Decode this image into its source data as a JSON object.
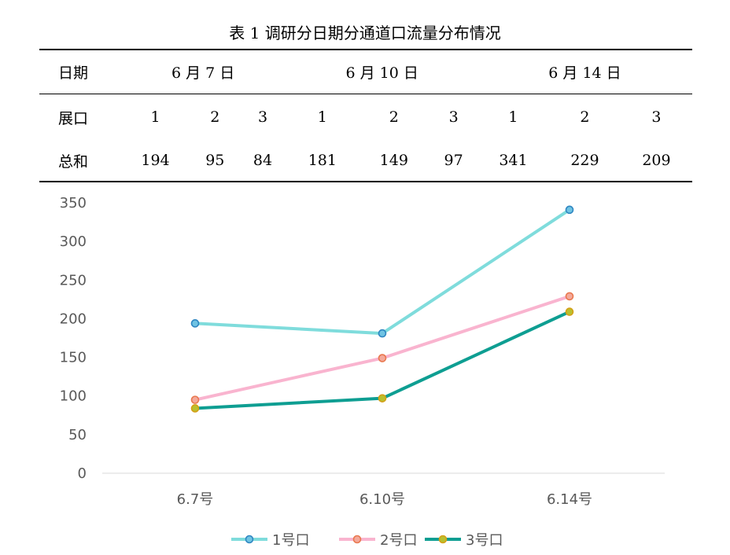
{
  "table": {
    "caption": "表 1 调研分日期分通道口流量分布情况",
    "date_label": "日期",
    "dates": [
      "6 月 7 日",
      "6 月 10 日",
      "6 月 14 日"
    ],
    "port_label": "展口",
    "ports": [
      "1",
      "2",
      "3",
      "1",
      "2",
      "3",
      "1",
      "2",
      "3"
    ],
    "sum_label": "总和",
    "sums": [
      "194",
      "95",
      "84",
      "181",
      "149",
      "97",
      "341",
      "229",
      "209"
    ]
  },
  "chart_data": {
    "type": "line",
    "categories": [
      "6.7号",
      "6.10号",
      "6.14号"
    ],
    "series": [
      {
        "name": "1号口",
        "values": [
          194,
          181,
          341
        ],
        "color": "#7fdcdc",
        "marker_fill": "#6fc3e3",
        "marker_stroke": "#2e86c1"
      },
      {
        "name": "2号口",
        "values": [
          95,
          149,
          229
        ],
        "color": "#f9b4cf",
        "marker_fill": "#f4a99a",
        "marker_stroke": "#e9784f"
      },
      {
        "name": "3号口",
        "values": [
          84,
          97,
          209
        ],
        "color": "#0e9e92",
        "marker_fill": "#b9c02f",
        "marker_stroke": "#d4a017"
      }
    ],
    "yticks": [
      0,
      50,
      100,
      150,
      200,
      250,
      300,
      350
    ],
    "ylim": [
      0,
      350
    ],
    "grid": false,
    "legend": "bottom",
    "axis_color": "#d9d9d9",
    "tick_color": "#595959"
  }
}
